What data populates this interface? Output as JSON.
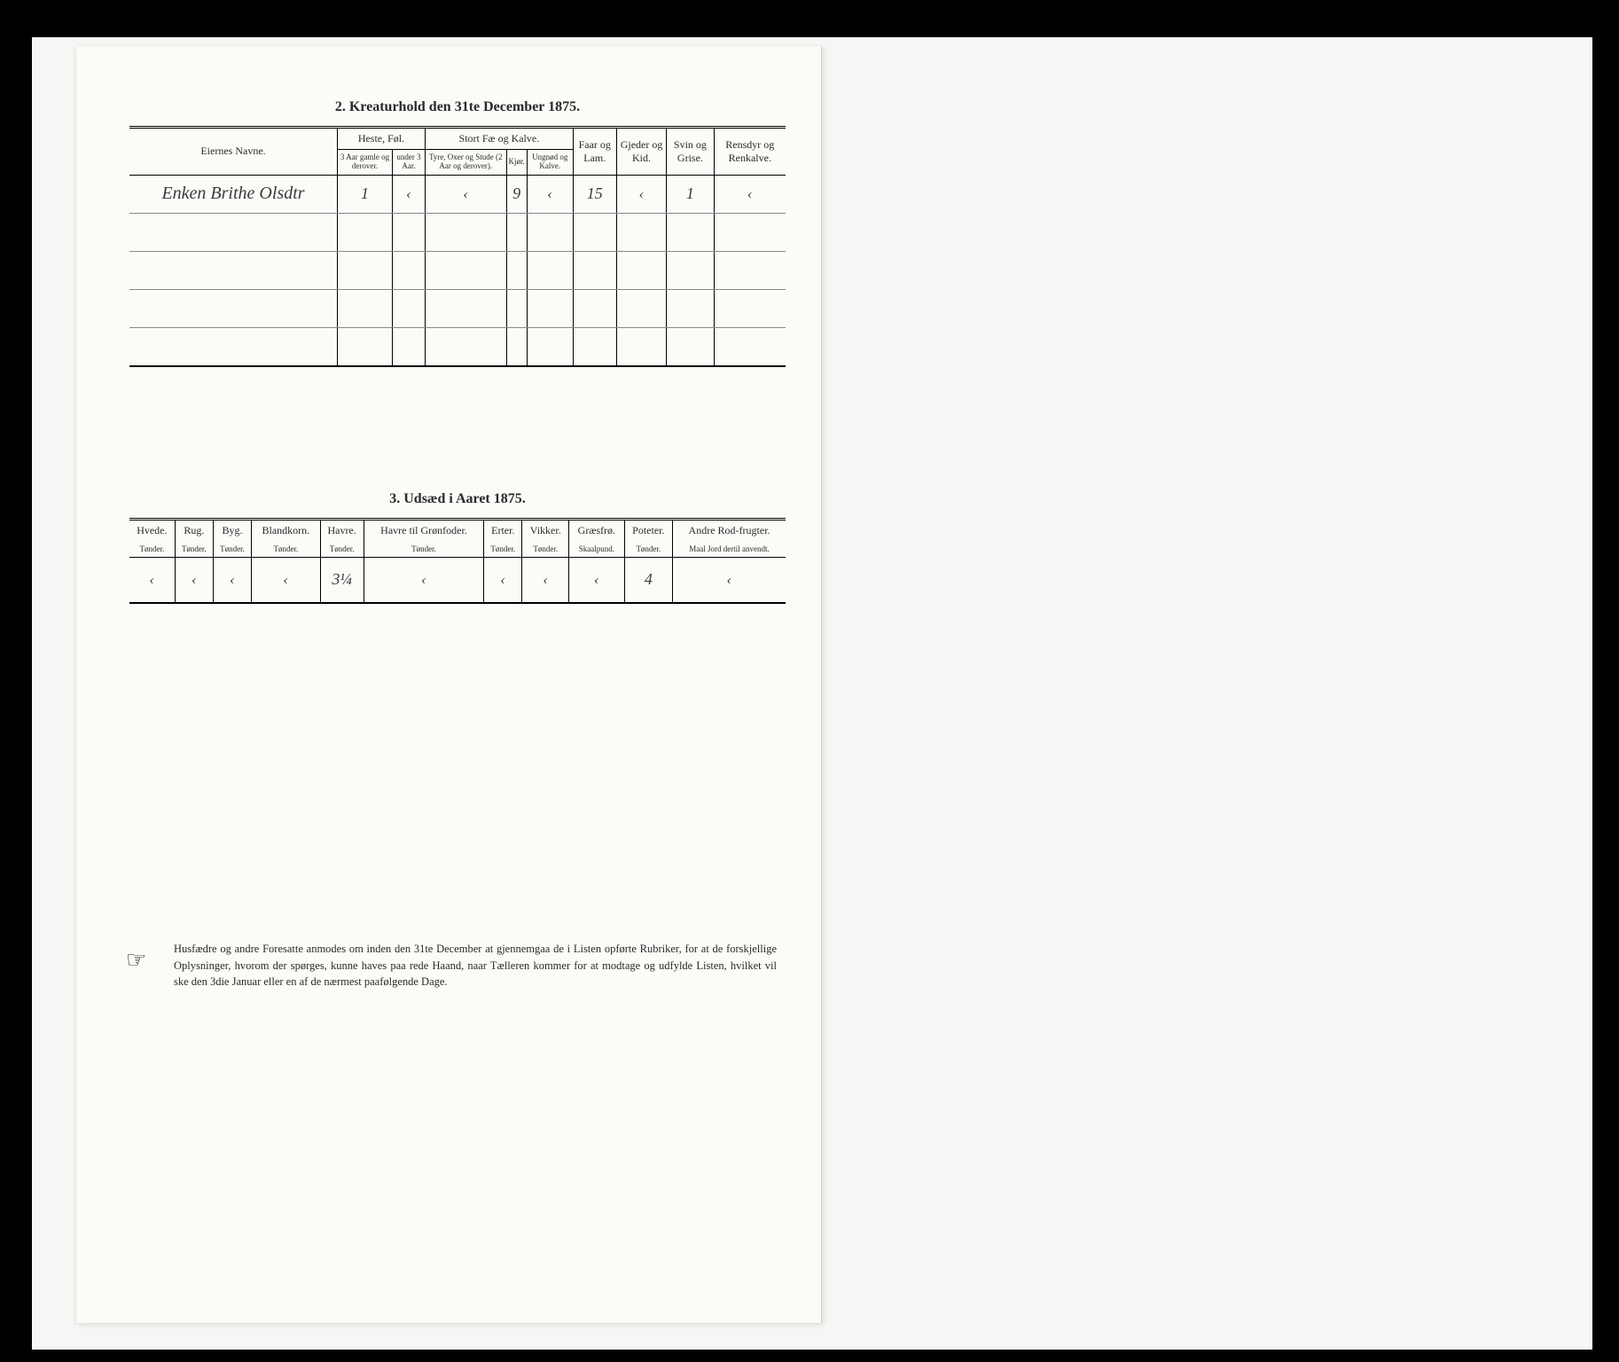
{
  "section2": {
    "title": "2.  Kreaturhold den 31te December 1875.",
    "col_name": "Eiernes Navne.",
    "group_heste": "Heste, Føl.",
    "group_stort": "Stort Fæ og Kalve.",
    "col_faar": "Faar og Lam.",
    "col_gjeder": "Gjeder og Kid.",
    "col_svin": "Svin og Grise.",
    "col_rensdyr": "Rensdyr og Renkalve.",
    "sub_heste1": "3 Aar gamle og derover.",
    "sub_heste2": "under 3 Aar.",
    "sub_stort1": "Tyre, Oxer og Stude (2 Aar og derover).",
    "sub_stort2": "Kjør.",
    "sub_stort3": "Ungnød og Kalve.",
    "rows": [
      {
        "name": "Enken Brithe Olsdtr",
        "v": [
          "1",
          "‹",
          "‹",
          "9",
          "‹",
          "15",
          "‹",
          "1",
          "‹"
        ]
      },
      {
        "name": "",
        "v": [
          "",
          "",
          "",
          "",
          "",
          "",
          "",
          "",
          ""
        ]
      },
      {
        "name": "",
        "v": [
          "",
          "",
          "",
          "",
          "",
          "",
          "",
          "",
          ""
        ]
      },
      {
        "name": "",
        "v": [
          "",
          "",
          "",
          "",
          "",
          "",
          "",
          "",
          ""
        ]
      },
      {
        "name": "",
        "v": [
          "",
          "",
          "",
          "",
          "",
          "",
          "",
          "",
          ""
        ]
      }
    ]
  },
  "section3": {
    "title": "3.  Udsæd i Aaret 1875.",
    "cols": [
      "Hvede.",
      "Rug.",
      "Byg.",
      "Blandkorn.",
      "Havre.",
      "Havre til Grønfoder.",
      "Erter.",
      "Vikker.",
      "Græsfrø.",
      "Poteter.",
      "Andre Rod-frugter."
    ],
    "units": [
      "Tønder.",
      "Tønder.",
      "Tønder.",
      "Tønder.",
      "Tønder.",
      "Tønder.",
      "Tønder.",
      "Tønder.",
      "Skaalpund.",
      "Tønder.",
      "Maal Jord dertil anvendt."
    ],
    "row": [
      "‹",
      "‹",
      "‹",
      "‹",
      "3¼",
      "‹",
      "‹",
      "‹",
      "‹",
      "4",
      "‹"
    ]
  },
  "footer": {
    "icon": "☞",
    "text": "Husfædre og andre Foresatte anmodes om inden den 31te December at gjennemgaa de i Listen opførte Rubriker, for at de forskjellige Oplysninger, hvorom der spørges, kunne haves paa rede Haand, naar Tælleren kommer for at modtage og udfylde Listen, hvilket vil ske den 3die Januar eller en af de nærmest paafølgende Dage."
  }
}
